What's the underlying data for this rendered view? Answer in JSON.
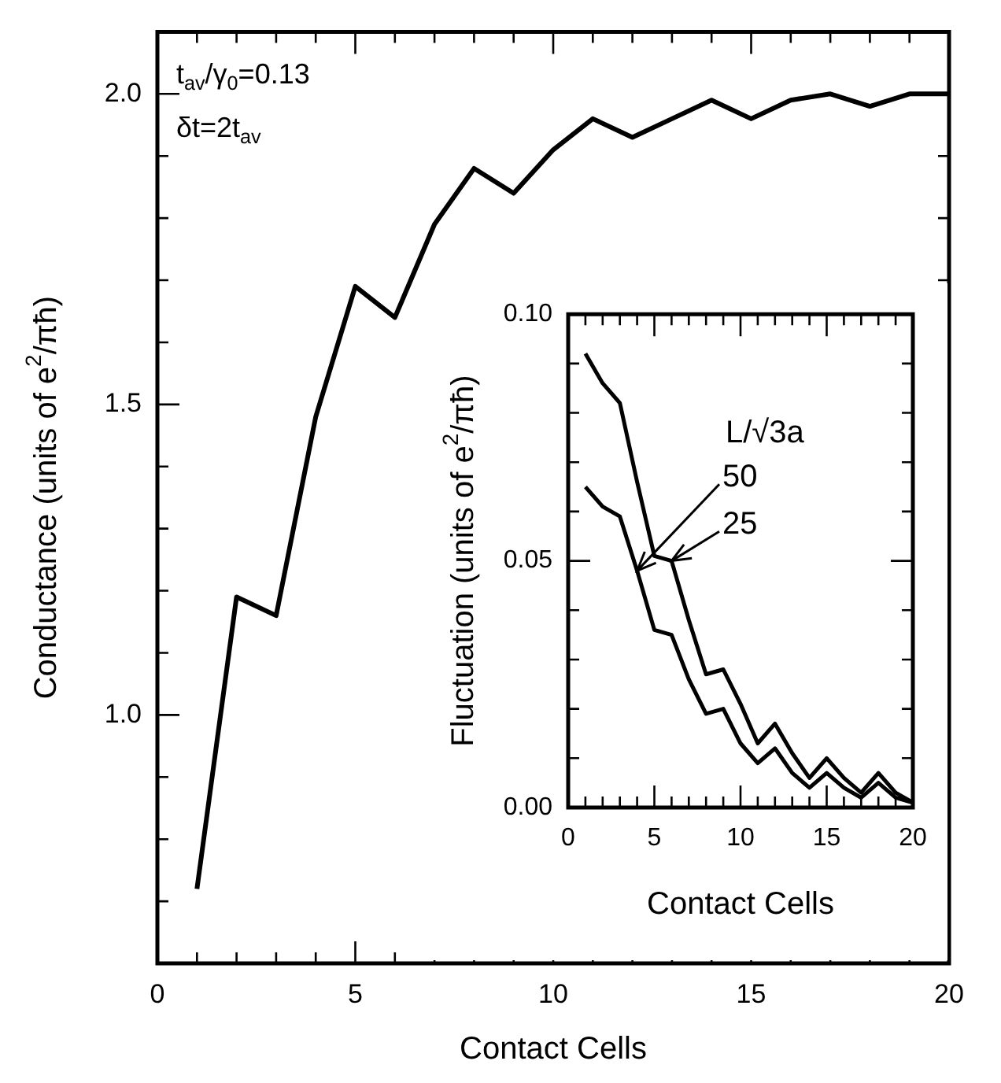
{
  "chart_data": [
    {
      "type": "line",
      "xlabel": "Contact Cells",
      "ylabel": "Conductance (units of e$^{2}$/πħ)",
      "annotations": [
        "t$_{av}$/γ$_{0}$=0.13",
        "δt=2t$_{av}$"
      ],
      "x": [
        1,
        2,
        3,
        4,
        5,
        6,
        7,
        8,
        9,
        10,
        11,
        12,
        13,
        14,
        15,
        16,
        17,
        18,
        19,
        20
      ],
      "series": [
        {
          "color": "#000000",
          "values": [
            0.72,
            1.19,
            1.16,
            1.48,
            1.69,
            1.64,
            1.79,
            1.88,
            1.84,
            1.91,
            1.96,
            1.93,
            1.96,
            1.99,
            1.96,
            1.99,
            2.0,
            1.98,
            2.0,
            2.0
          ]
        }
      ],
      "xlim": [
        0,
        20
      ],
      "ylim": [
        0.6,
        2.1
      ],
      "xticks": [
        0,
        {
          "value": 1,
          "label": null
        },
        {
          "value": 2,
          "label": null
        },
        {
          "value": 3,
          "label": null
        },
        {
          "value": 4,
          "label": null
        },
        5,
        {
          "value": 6,
          "label": null
        },
        {
          "value": 7,
          "label": null
        },
        {
          "value": 8,
          "label": null
        },
        {
          "value": 9,
          "label": null
        },
        10,
        {
          "value": 11,
          "label": null
        },
        {
          "value": 12,
          "label": null
        },
        {
          "value": 13,
          "label": null
        },
        {
          "value": 14,
          "label": null
        },
        15,
        {
          "value": 16,
          "label": null
        },
        {
          "value": 17,
          "label": null
        },
        {
          "value": 18,
          "label": null
        },
        {
          "value": 19,
          "label": null
        },
        20
      ],
      "yticks": [
        {
          "value": 0.7,
          "label": null
        },
        {
          "value": 0.8,
          "label": null
        },
        {
          "value": 0.9,
          "label": null
        },
        {
          "value": 1,
          "label": "1.0"
        },
        {
          "value": 1.1,
          "label": null
        },
        {
          "value": 1.2,
          "label": null
        },
        {
          "value": 1.3,
          "label": null
        },
        {
          "value": 1.4,
          "label": null
        },
        {
          "value": 1.5,
          "label": "1.5"
        },
        {
          "value": 1.6,
          "label": null
        },
        {
          "value": 1.7,
          "label": null
        },
        {
          "value": 1.8,
          "label": null
        },
        {
          "value": 1.9,
          "label": null
        },
        {
          "value": 2,
          "label": "2.0"
        }
      ]
    },
    {
      "type": "line",
      "xlabel": "Contact Cells",
      "ylabel": "Fluctuation (units of e$^{2}$/πħ)",
      "legend_title": "L/√3a",
      "x": [
        1,
        2,
        3,
        4,
        5,
        6,
        7,
        8,
        9,
        10,
        11,
        12,
        13,
        14,
        15,
        16,
        17,
        18,
        19,
        20
      ],
      "series": [
        {
          "name": "50",
          "color": "#000000",
          "values": [
            0.065,
            0.061,
            0.059,
            0.048,
            0.036,
            0.035,
            0.026,
            0.019,
            0.02,
            0.013,
            0.009,
            0.012,
            0.007,
            0.004,
            0.007,
            0.004,
            0.002,
            0.005,
            0.002,
            0.001
          ]
        },
        {
          "name": "25",
          "color": "#000000",
          "values": [
            0.092,
            0.086,
            0.082,
            0.066,
            0.051,
            0.05,
            0.038,
            0.027,
            0.028,
            0.021,
            0.013,
            0.017,
            0.011,
            0.006,
            0.01,
            0.006,
            0.003,
            0.007,
            0.003,
            0.001
          ]
        }
      ],
      "legend": "top left",
      "xlim": [
        0,
        20
      ],
      "ylim": [
        0,
        0.1
      ],
      "xticks": [
        0,
        {
          "value": 1,
          "label": null
        },
        {
          "value": 2,
          "label": null
        },
        {
          "value": 3,
          "label": null
        },
        {
          "value": 4,
          "label": null
        },
        5,
        {
          "value": 6,
          "label": null
        },
        {
          "value": 7,
          "label": null
        },
        {
          "value": 8,
          "label": null
        },
        {
          "value": 9,
          "label": null
        },
        10,
        {
          "value": 11,
          "label": null
        },
        {
          "value": 12,
          "label": null
        },
        {
          "value": 13,
          "label": null
        },
        {
          "value": 14,
          "label": null
        },
        15,
        {
          "value": 16,
          "label": null
        },
        {
          "value": 17,
          "label": null
        },
        {
          "value": 18,
          "label": null
        },
        {
          "value": 19,
          "label": null
        },
        20
      ],
      "yticks": [
        {
          "value": 0,
          "label": "0.00"
        },
        {
          "value": 0.01,
          "label": null
        },
        {
          "value": 0.02,
          "label": null
        },
        {
          "value": 0.03,
          "label": null
        },
        {
          "value": 0.04,
          "label": null
        },
        {
          "value": 0.05,
          "label": "0.05"
        },
        {
          "value": 0.06,
          "label": null
        },
        {
          "value": 0.07,
          "label": null
        },
        {
          "value": 0.08,
          "label": null
        },
        {
          "value": 0.09,
          "label": null
        },
        {
          "value": 0.1,
          "label": "0.10"
        }
      ]
    }
  ]
}
